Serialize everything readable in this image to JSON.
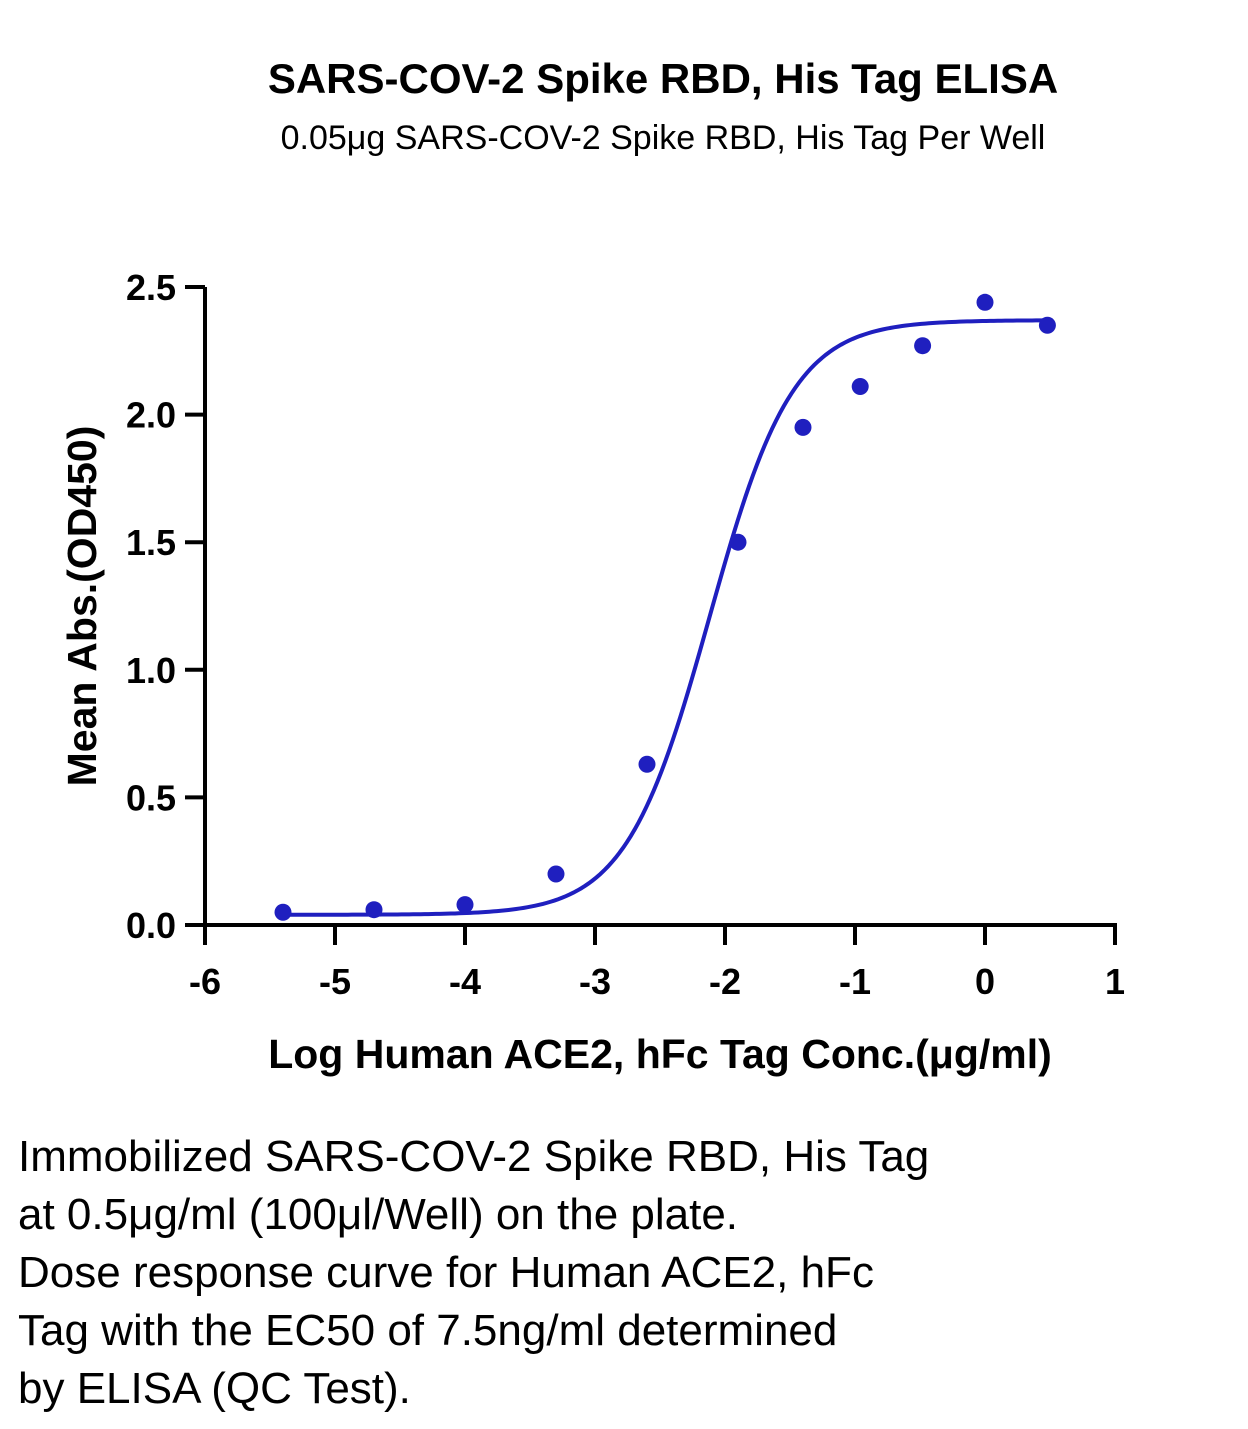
{
  "chart_data": {
    "type": "scatter",
    "title": "SARS-COV-2 Spike RBD, His Tag ELISA",
    "subtitle": "0.05μg SARS-COV-2 Spike RBD, His Tag Per Well",
    "xlabel": "Log Human ACE2, hFc Tag Conc.(μg/ml)",
    "ylabel": "Mean Abs.(OD450)",
    "xlim": [
      -6,
      1
    ],
    "ylim": [
      0,
      2.5
    ],
    "xticks": [
      "-6",
      "-5",
      "-4",
      "-3",
      "-2",
      "-1",
      "0",
      "1"
    ],
    "yticks": [
      "0.0",
      "0.5",
      "1.0",
      "1.5",
      "2.0",
      "2.5"
    ],
    "grid": false,
    "color": "#1f1fbf",
    "points": [
      {
        "x": -5.4,
        "y": 0.05
      },
      {
        "x": -4.7,
        "y": 0.06
      },
      {
        "x": -4.0,
        "y": 0.08
      },
      {
        "x": -3.3,
        "y": 0.2
      },
      {
        "x": -2.6,
        "y": 0.63
      },
      {
        "x": -1.9,
        "y": 1.5
      },
      {
        "x": -1.4,
        "y": 1.95
      },
      {
        "x": -0.96,
        "y": 2.11
      },
      {
        "x": -0.48,
        "y": 2.27
      },
      {
        "x": 0.0,
        "y": 2.44
      },
      {
        "x": 0.48,
        "y": 2.35
      }
    ],
    "fit": {
      "model": "4PL",
      "bottom": 0.04,
      "top": 2.37,
      "log_ec50": -2.12,
      "hill_slope": 1.35,
      "x_range": [
        -5.4,
        0.48
      ]
    }
  },
  "caption": {
    "lines": [
      "Immobilized SARS-COV-2 Spike RBD, His Tag",
      "at 0.5μg/ml (100μl/Well) on the plate.",
      "Dose response curve for Human ACE2, hFc",
      "Tag with the EC50 of 7.5ng/ml determined",
      "by ELISA (QC Test)."
    ]
  }
}
